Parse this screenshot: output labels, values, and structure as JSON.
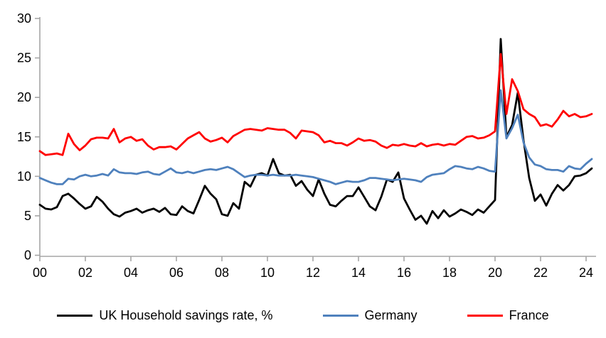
{
  "chart_data": {
    "type": "line",
    "title": "",
    "x_axis": {
      "unit": "year",
      "start": "2000 Q1",
      "end": "2024 Q2",
      "frequency": "quarterly",
      "tick_labels": [
        "00",
        "02",
        "04",
        "06",
        "08",
        "10",
        "12",
        "14",
        "16",
        "18",
        "20",
        "22",
        "24"
      ]
    },
    "y_axis": {
      "min": 0,
      "max": 30,
      "tick_interval": 5,
      "tick_labels": [
        "0",
        "5",
        "10",
        "15",
        "20",
        "25",
        "30"
      ]
    },
    "grid": false,
    "legend_position": "bottom",
    "axis_color": "#a6a6a6",
    "series": [
      {
        "name": "UK Household savings rate, %",
        "color": "#000000",
        "values": [
          6.4,
          5.9,
          5.8,
          6.1,
          7.5,
          7.8,
          7.2,
          6.5,
          5.9,
          6.2,
          7.4,
          6.8,
          5.9,
          5.2,
          4.9,
          5.4,
          5.6,
          5.9,
          5.4,
          5.7,
          5.9,
          5.5,
          6.0,
          5.2,
          5.1,
          6.2,
          5.6,
          5.3,
          7.0,
          8.8,
          7.8,
          7.1,
          5.2,
          5.0,
          6.6,
          5.9,
          9.3,
          8.7,
          10.2,
          10.4,
          10.1,
          12.2,
          10.4,
          10.1,
          10.2,
          8.8,
          9.4,
          8.3,
          7.5,
          9.6,
          7.8,
          6.4,
          6.2,
          6.9,
          7.5,
          7.5,
          8.6,
          7.4,
          6.2,
          5.7,
          7.4,
          9.6,
          9.3,
          10.5,
          7.2,
          5.8,
          4.5,
          5.0,
          4.0,
          5.6,
          4.7,
          5.7,
          4.9,
          5.3,
          5.8,
          5.5,
          5.1,
          5.8,
          5.4,
          6.2,
          7.0,
          27.4,
          15.0,
          16.5,
          20.6,
          14.6,
          9.8,
          6.9,
          7.7,
          6.3,
          7.8,
          8.9,
          8.2,
          8.9,
          10.0,
          10.1,
          10.4,
          11.0
        ]
      },
      {
        "name": "Germany",
        "color": "#4f81bd",
        "values": [
          9.8,
          9.5,
          9.2,
          9.0,
          9.0,
          9.7,
          9.6,
          10.0,
          10.2,
          10.0,
          10.1,
          10.3,
          10.1,
          10.9,
          10.5,
          10.4,
          10.4,
          10.3,
          10.5,
          10.6,
          10.3,
          10.2,
          10.6,
          11.0,
          10.5,
          10.4,
          10.6,
          10.4,
          10.6,
          10.8,
          10.9,
          10.8,
          11.0,
          11.2,
          10.9,
          10.4,
          9.9,
          10.1,
          10.2,
          10.2,
          10.1,
          10.2,
          10.1,
          10.1,
          10.1,
          10.2,
          10.1,
          10.0,
          9.9,
          9.7,
          9.5,
          9.3,
          9.0,
          9.2,
          9.4,
          9.3,
          9.3,
          9.5,
          9.8,
          9.8,
          9.7,
          9.6,
          9.5,
          9.6,
          9.7,
          9.6,
          9.5,
          9.3,
          9.9,
          10.2,
          10.3,
          10.4,
          10.9,
          11.3,
          11.2,
          11.0,
          10.9,
          11.2,
          11.0,
          10.7,
          10.6,
          20.9,
          14.8,
          16.1,
          17.8,
          14.3,
          12.4,
          11.5,
          11.3,
          10.9,
          10.8,
          10.8,
          10.6,
          11.3,
          11.0,
          10.9,
          11.6,
          12.2
        ]
      },
      {
        "name": "France",
        "color": "#ff0000",
        "values": [
          13.2,
          12.7,
          12.8,
          12.9,
          12.7,
          15.4,
          14.1,
          13.3,
          13.9,
          14.7,
          14.9,
          14.9,
          14.8,
          16.0,
          14.3,
          14.8,
          15.0,
          14.5,
          14.7,
          13.9,
          13.4,
          13.7,
          13.7,
          13.8,
          13.4,
          14.1,
          14.8,
          15.2,
          15.6,
          14.8,
          14.4,
          14.6,
          14.9,
          14.3,
          15.1,
          15.5,
          15.9,
          16.0,
          15.9,
          15.8,
          16.1,
          16.0,
          15.9,
          15.9,
          15.5,
          14.8,
          15.8,
          15.7,
          15.6,
          15.2,
          14.3,
          14.5,
          14.2,
          14.2,
          13.9,
          14.3,
          14.8,
          14.5,
          14.6,
          14.4,
          13.9,
          13.6,
          14.0,
          13.9,
          14.1,
          13.9,
          13.8,
          14.2,
          13.8,
          14.0,
          14.1,
          13.9,
          14.1,
          14.0,
          14.5,
          15.0,
          15.1,
          14.8,
          14.9,
          15.2,
          15.7,
          25.5,
          17.9,
          22.3,
          20.8,
          18.5,
          17.9,
          17.5,
          16.4,
          16.6,
          16.3,
          17.2,
          18.3,
          17.6,
          17.9,
          17.5,
          17.6,
          17.9
        ]
      }
    ]
  }
}
